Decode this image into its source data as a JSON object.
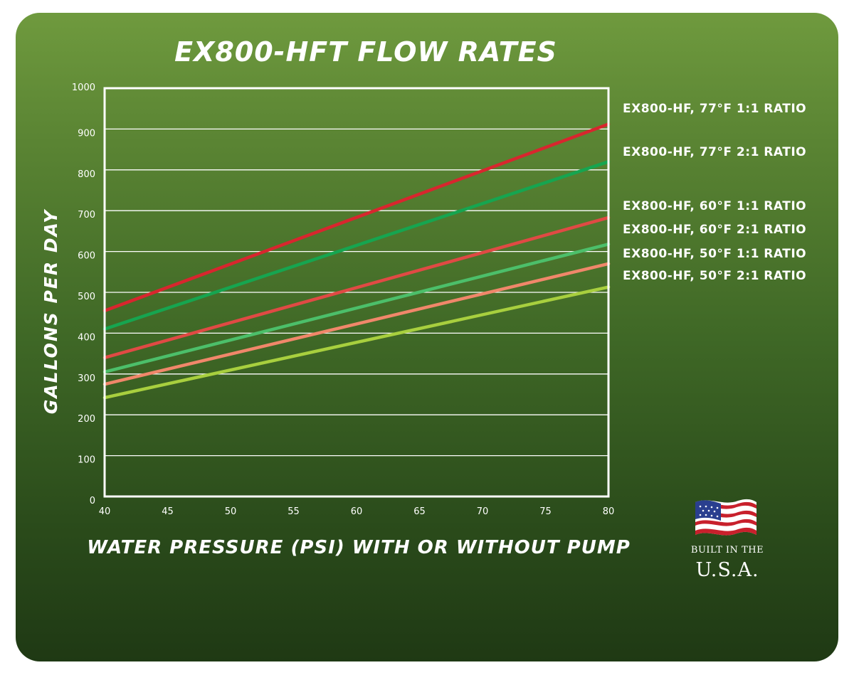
{
  "chart_data": {
    "type": "line",
    "title": "EX800-HFT FLOW RATES",
    "xlabel": "WATER PRESSURE (PSI) WITH OR WITHOUT PUMP",
    "ylabel": "GALLONS PER DAY",
    "xlim": [
      40,
      80
    ],
    "ylim": [
      0,
      1000
    ],
    "x_ticks": [
      "40",
      "45",
      "50",
      "55",
      "60",
      "65",
      "70",
      "75",
      "80"
    ],
    "y_ticks": [
      "0",
      "100",
      "200",
      "300",
      "400",
      "500",
      "600",
      "700",
      "800",
      "900",
      "1000"
    ],
    "grid": "horizontal",
    "legend_position": "right",
    "series": [
      {
        "name": "EX800-HF, 77°F 1:1 RATIO",
        "color": "#d8262e",
        "x": [
          40,
          80
        ],
        "y": [
          455,
          912
        ]
      },
      {
        "name": "EX800-HF, 77°F 2:1 RATIO",
        "color": "#16a550",
        "x": [
          40,
          80
        ],
        "y": [
          410,
          820
        ]
      },
      {
        "name": "EX800-HF, 60°F 1:1 RATIO",
        "color": "#e04a44",
        "x": [
          40,
          80
        ],
        "y": [
          340,
          683
        ]
      },
      {
        "name": "EX800-HF, 60°F 2:1 RATIO",
        "color": "#4cbf6a",
        "x": [
          40,
          80
        ],
        "y": [
          305,
          618
        ]
      },
      {
        "name": "EX800-HF, 50°F 1:1 RATIO",
        "color": "#f0876a",
        "x": [
          40,
          80
        ],
        "y": [
          275,
          570
        ]
      },
      {
        "name": "EX800-HF, 50°F 2:1 RATIO",
        "color": "#a8cf3e",
        "x": [
          40,
          80
        ],
        "y": [
          242,
          513
        ]
      }
    ]
  },
  "badge": {
    "line1": "BUILT IN THE",
    "line2": "U.S.A.",
    "icon": "usa-flag-icon"
  }
}
